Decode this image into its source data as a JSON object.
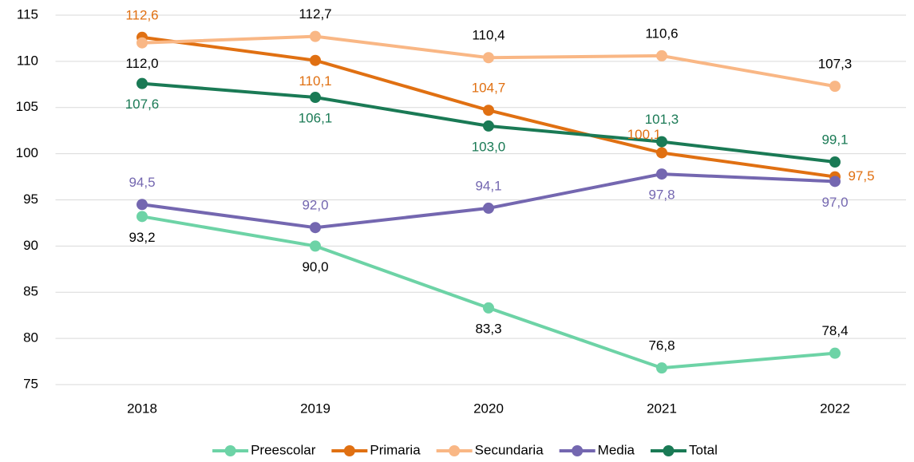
{
  "chart_data": {
    "type": "line",
    "categories": [
      "2018",
      "2019",
      "2020",
      "2021",
      "2022"
    ],
    "series": [
      {
        "name": "Preescolar",
        "color": "#6dd3a6",
        "label_color": "#000000",
        "values": [
          93.2,
          90.0,
          83.3,
          76.8,
          78.4
        ],
        "value_labels": [
          "93,2",
          "90,0",
          "83,3",
          "76,8",
          "78,4"
        ]
      },
      {
        "name": "Primaria",
        "color": "#e07012",
        "label_color": "#e07012",
        "values": [
          112.6,
          110.1,
          104.7,
          100.1,
          97.5
        ],
        "value_labels": [
          "112,6",
          "110,1",
          "104,7",
          "100,1",
          "97,5"
        ]
      },
      {
        "name": "Secundaria",
        "color": "#f9b785",
        "label_color": "#000000",
        "values": [
          112.0,
          112.7,
          110.4,
          110.6,
          107.3
        ],
        "value_labels": [
          "112,0",
          "112,7",
          "110,4",
          "110,6",
          "107,3"
        ]
      },
      {
        "name": "Media",
        "color": "#7467b0",
        "label_color": "#7467b0",
        "values": [
          94.5,
          92.0,
          94.1,
          97.8,
          97.0
        ],
        "value_labels": [
          "94,5",
          "92,0",
          "94,1",
          "97,8",
          "97,0"
        ]
      },
      {
        "name": "Total",
        "color": "#1a7a55",
        "label_color": "#1a7a55",
        "values": [
          107.6,
          106.1,
          103.0,
          101.3,
          99.1
        ],
        "value_labels": [
          "107,6",
          "106,1",
          "103,0",
          "101,3",
          "99,1"
        ]
      }
    ],
    "ylim": [
      75,
      115
    ],
    "yticks": [
      75,
      80,
      85,
      90,
      95,
      100,
      105,
      110,
      115
    ],
    "grid": true,
    "legend": "bottom"
  }
}
